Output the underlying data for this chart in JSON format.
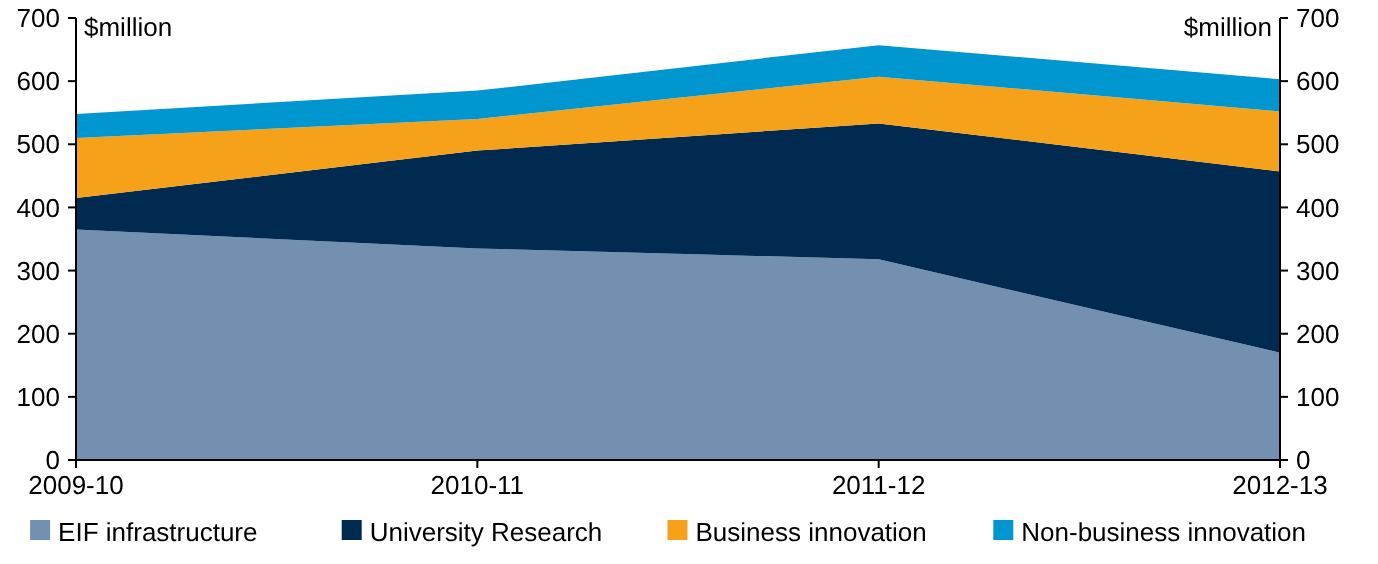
{
  "chart_data": {
    "type": "area",
    "stacked": true,
    "categories": [
      "2009-10",
      "2010-11",
      "2011-12",
      "2012-13"
    ],
    "series": [
      {
        "name": "EIF infrastructure",
        "color": "#7490b0",
        "values": [
          365,
          335,
          318,
          170
        ]
      },
      {
        "name": "University Research",
        "color": "#002a50",
        "values": [
          50,
          155,
          215,
          287
        ]
      },
      {
        "name": "Business innovation",
        "color": "#f5a21a",
        "values": [
          95,
          50,
          74,
          95
        ]
      },
      {
        "name": "Non-business innovation",
        "color": "#0096d0",
        "values": [
          38,
          45,
          50,
          51
        ]
      }
    ],
    "ylabel": "$million",
    "y2label": "$million",
    "ylim": [
      0,
      700
    ],
    "yticks": [
      0,
      100,
      200,
      300,
      400,
      500,
      600,
      700
    ],
    "y2lim": [
      0,
      700
    ],
    "y2ticks": [
      0,
      100,
      200,
      300,
      400,
      500,
      600,
      700
    ],
    "legend": "bottom"
  }
}
